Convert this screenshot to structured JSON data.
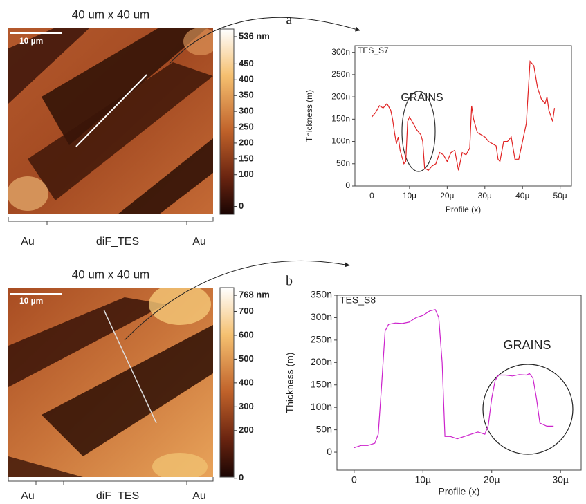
{
  "panels": [
    {
      "label": "a",
      "image_title": "40 um x 40 um",
      "scale_bar": "10 µm",
      "colorbar": {
        "lim": [
          -25,
          560
        ],
        "ticks": [
          {
            "value": 536,
            "label": "536 nm"
          },
          450,
          400,
          350,
          300,
          250,
          200,
          150,
          100,
          0
        ]
      },
      "regions": [
        "Au",
        "diF_TES",
        "Au"
      ]
    },
    {
      "label": "b",
      "image_title": "40 um x 40 um",
      "scale_bar": "10 µm",
      "colorbar": {
        "lim": [
          5,
          800
        ],
        "ticks": [
          {
            "value": 768,
            "label": "768 nm"
          },
          700,
          600,
          500,
          400,
          300,
          200,
          0
        ]
      },
      "regions": [
        "Au",
        "diF_TES",
        "Au"
      ]
    }
  ],
  "chart_data": [
    {
      "type": "line",
      "title": "TES_S7",
      "x_label": "Profile (x)",
      "y_label": "Thickness (m)",
      "annotation": "GRAINS",
      "x": [
        0,
        1,
        2,
        3,
        4,
        5,
        5.5,
        6,
        6.5,
        7,
        7.5,
        8,
        8.5,
        9,
        9.5,
        10,
        11,
        12,
        13,
        13.5,
        14,
        15,
        16,
        17,
        18,
        19,
        20,
        21,
        22,
        23,
        24,
        25,
        26,
        26.5,
        27,
        28,
        29,
        30,
        31,
        32,
        33,
        33.5,
        34,
        35,
        36,
        37,
        38,
        39,
        40,
        41,
        41.5,
        42,
        43,
        44,
        45,
        46,
        46.5,
        47,
        48,
        48.5
      ],
      "series": [
        {
          "color": "#e02222",
          "values": [
            155,
            165,
            180,
            175,
            185,
            170,
            150,
            120,
            95,
            110,
            80,
            65,
            50,
            55,
            145,
            155,
            140,
            125,
            115,
            100,
            40,
            35,
            45,
            50,
            75,
            70,
            55,
            75,
            80,
            35,
            75,
            70,
            85,
            180,
            150,
            120,
            115,
            110,
            100,
            95,
            90,
            60,
            55,
            100,
            100,
            110,
            60,
            60,
            100,
            140,
            210,
            280,
            270,
            220,
            195,
            185,
            200,
            170,
            145,
            175
          ]
        }
      ],
      "xlim": [
        -4.5,
        53
      ],
      "ylim": [
        0,
        315
      ],
      "xticks": [
        0,
        {
          "value": 10,
          "label": "10µ"
        },
        {
          "value": 20,
          "label": "20µ"
        },
        {
          "value": 30,
          "label": "30µ"
        },
        {
          "value": 40,
          "label": "40µ"
        },
        {
          "value": 50,
          "label": "50µ"
        }
      ],
      "yticks": [
        0,
        {
          "value": 50,
          "label": "50n"
        },
        {
          "value": 100,
          "label": "100n"
        },
        {
          "value": 150,
          "label": "150n"
        },
        {
          "value": 200,
          "label": "200n"
        },
        {
          "value": 250,
          "label": "250n"
        },
        {
          "value": 300,
          "label": "300n"
        }
      ]
    },
    {
      "type": "line",
      "title": "TES_S8",
      "x_label": "Profile (x)",
      "y_label": "Thickness (m)",
      "annotation": "GRAINS",
      "x": [
        0,
        1,
        2,
        3,
        3.5,
        4,
        4.5,
        5,
        6,
        7,
        8,
        9,
        10,
        11,
        11.8,
        12.3,
        12.8,
        13.2,
        14,
        15,
        16,
        17,
        18,
        19,
        19.5,
        20,
        20.5,
        21,
        22,
        23,
        24,
        25,
        25.5,
        26,
        26.5,
        27,
        28,
        29
      ],
      "series": [
        {
          "color": "#cc22cc",
          "values": [
            10,
            15,
            15,
            20,
            40,
            150,
            270,
            285,
            288,
            287,
            290,
            300,
            305,
            315,
            318,
            300,
            200,
            35,
            35,
            30,
            35,
            40,
            45,
            40,
            60,
            120,
            160,
            172,
            172,
            170,
            173,
            172,
            175,
            165,
            120,
            65,
            58,
            58
          ]
        }
      ],
      "xlim": [
        -2.5,
        33
      ],
      "ylim": [
        -40,
        350
      ],
      "xticks": [
        0,
        {
          "value": 10,
          "label": "10µ"
        },
        {
          "value": 20,
          "label": "20µ"
        },
        {
          "value": 30,
          "label": "30µ"
        }
      ],
      "yticks": [
        0,
        {
          "value": 50,
          "label": "50n"
        },
        {
          "value": 100,
          "label": "100n"
        },
        {
          "value": 150,
          "label": "150n"
        },
        {
          "value": 200,
          "label": "200n"
        },
        {
          "value": 250,
          "label": "250n"
        },
        {
          "value": 300,
          "label": "300n"
        },
        {
          "value": 350,
          "label": "350n"
        }
      ]
    }
  ]
}
